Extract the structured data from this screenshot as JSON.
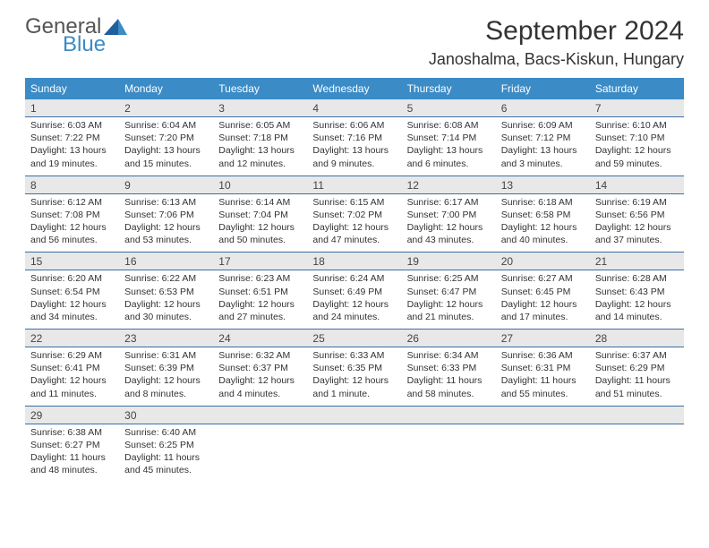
{
  "logo": {
    "general": "General",
    "blue": "Blue"
  },
  "title": {
    "month": "September 2024",
    "location": "Janoshalma, Bacs-Kiskun, Hungary"
  },
  "colors": {
    "header_bg": "#3b8bc6",
    "header_text": "#ffffff",
    "daynum_bg": "#e8e8e8",
    "border": "#3b6ea5",
    "text": "#333333",
    "logo_gray": "#555555",
    "logo_blue": "#3b8bc6"
  },
  "day_names": [
    "Sunday",
    "Monday",
    "Tuesday",
    "Wednesday",
    "Thursday",
    "Friday",
    "Saturday"
  ],
  "weeks": [
    {
      "nums": [
        "1",
        "2",
        "3",
        "4",
        "5",
        "6",
        "7"
      ],
      "cells": [
        {
          "sunrise": "Sunrise: 6:03 AM",
          "sunset": "Sunset: 7:22 PM",
          "day1": "Daylight: 13 hours",
          "day2": "and 19 minutes."
        },
        {
          "sunrise": "Sunrise: 6:04 AM",
          "sunset": "Sunset: 7:20 PM",
          "day1": "Daylight: 13 hours",
          "day2": "and 15 minutes."
        },
        {
          "sunrise": "Sunrise: 6:05 AM",
          "sunset": "Sunset: 7:18 PM",
          "day1": "Daylight: 13 hours",
          "day2": "and 12 minutes."
        },
        {
          "sunrise": "Sunrise: 6:06 AM",
          "sunset": "Sunset: 7:16 PM",
          "day1": "Daylight: 13 hours",
          "day2": "and 9 minutes."
        },
        {
          "sunrise": "Sunrise: 6:08 AM",
          "sunset": "Sunset: 7:14 PM",
          "day1": "Daylight: 13 hours",
          "day2": "and 6 minutes."
        },
        {
          "sunrise": "Sunrise: 6:09 AM",
          "sunset": "Sunset: 7:12 PM",
          "day1": "Daylight: 13 hours",
          "day2": "and 3 minutes."
        },
        {
          "sunrise": "Sunrise: 6:10 AM",
          "sunset": "Sunset: 7:10 PM",
          "day1": "Daylight: 12 hours",
          "day2": "and 59 minutes."
        }
      ]
    },
    {
      "nums": [
        "8",
        "9",
        "10",
        "11",
        "12",
        "13",
        "14"
      ],
      "cells": [
        {
          "sunrise": "Sunrise: 6:12 AM",
          "sunset": "Sunset: 7:08 PM",
          "day1": "Daylight: 12 hours",
          "day2": "and 56 minutes."
        },
        {
          "sunrise": "Sunrise: 6:13 AM",
          "sunset": "Sunset: 7:06 PM",
          "day1": "Daylight: 12 hours",
          "day2": "and 53 minutes."
        },
        {
          "sunrise": "Sunrise: 6:14 AM",
          "sunset": "Sunset: 7:04 PM",
          "day1": "Daylight: 12 hours",
          "day2": "and 50 minutes."
        },
        {
          "sunrise": "Sunrise: 6:15 AM",
          "sunset": "Sunset: 7:02 PM",
          "day1": "Daylight: 12 hours",
          "day2": "and 47 minutes."
        },
        {
          "sunrise": "Sunrise: 6:17 AM",
          "sunset": "Sunset: 7:00 PM",
          "day1": "Daylight: 12 hours",
          "day2": "and 43 minutes."
        },
        {
          "sunrise": "Sunrise: 6:18 AM",
          "sunset": "Sunset: 6:58 PM",
          "day1": "Daylight: 12 hours",
          "day2": "and 40 minutes."
        },
        {
          "sunrise": "Sunrise: 6:19 AM",
          "sunset": "Sunset: 6:56 PM",
          "day1": "Daylight: 12 hours",
          "day2": "and 37 minutes."
        }
      ]
    },
    {
      "nums": [
        "15",
        "16",
        "17",
        "18",
        "19",
        "20",
        "21"
      ],
      "cells": [
        {
          "sunrise": "Sunrise: 6:20 AM",
          "sunset": "Sunset: 6:54 PM",
          "day1": "Daylight: 12 hours",
          "day2": "and 34 minutes."
        },
        {
          "sunrise": "Sunrise: 6:22 AM",
          "sunset": "Sunset: 6:53 PM",
          "day1": "Daylight: 12 hours",
          "day2": "and 30 minutes."
        },
        {
          "sunrise": "Sunrise: 6:23 AM",
          "sunset": "Sunset: 6:51 PM",
          "day1": "Daylight: 12 hours",
          "day2": "and 27 minutes."
        },
        {
          "sunrise": "Sunrise: 6:24 AM",
          "sunset": "Sunset: 6:49 PM",
          "day1": "Daylight: 12 hours",
          "day2": "and 24 minutes."
        },
        {
          "sunrise": "Sunrise: 6:25 AM",
          "sunset": "Sunset: 6:47 PM",
          "day1": "Daylight: 12 hours",
          "day2": "and 21 minutes."
        },
        {
          "sunrise": "Sunrise: 6:27 AM",
          "sunset": "Sunset: 6:45 PM",
          "day1": "Daylight: 12 hours",
          "day2": "and 17 minutes."
        },
        {
          "sunrise": "Sunrise: 6:28 AM",
          "sunset": "Sunset: 6:43 PM",
          "day1": "Daylight: 12 hours",
          "day2": "and 14 minutes."
        }
      ]
    },
    {
      "nums": [
        "22",
        "23",
        "24",
        "25",
        "26",
        "27",
        "28"
      ],
      "cells": [
        {
          "sunrise": "Sunrise: 6:29 AM",
          "sunset": "Sunset: 6:41 PM",
          "day1": "Daylight: 12 hours",
          "day2": "and 11 minutes."
        },
        {
          "sunrise": "Sunrise: 6:31 AM",
          "sunset": "Sunset: 6:39 PM",
          "day1": "Daylight: 12 hours",
          "day2": "and 8 minutes."
        },
        {
          "sunrise": "Sunrise: 6:32 AM",
          "sunset": "Sunset: 6:37 PM",
          "day1": "Daylight: 12 hours",
          "day2": "and 4 minutes."
        },
        {
          "sunrise": "Sunrise: 6:33 AM",
          "sunset": "Sunset: 6:35 PM",
          "day1": "Daylight: 12 hours",
          "day2": "and 1 minute."
        },
        {
          "sunrise": "Sunrise: 6:34 AM",
          "sunset": "Sunset: 6:33 PM",
          "day1": "Daylight: 11 hours",
          "day2": "and 58 minutes."
        },
        {
          "sunrise": "Sunrise: 6:36 AM",
          "sunset": "Sunset: 6:31 PM",
          "day1": "Daylight: 11 hours",
          "day2": "and 55 minutes."
        },
        {
          "sunrise": "Sunrise: 6:37 AM",
          "sunset": "Sunset: 6:29 PM",
          "day1": "Daylight: 11 hours",
          "day2": "and 51 minutes."
        }
      ]
    },
    {
      "nums": [
        "29",
        "30",
        "",
        "",
        "",
        "",
        ""
      ],
      "cells": [
        {
          "sunrise": "Sunrise: 6:38 AM",
          "sunset": "Sunset: 6:27 PM",
          "day1": "Daylight: 11 hours",
          "day2": "and 48 minutes."
        },
        {
          "sunrise": "Sunrise: 6:40 AM",
          "sunset": "Sunset: 6:25 PM",
          "day1": "Daylight: 11 hours",
          "day2": "and 45 minutes."
        },
        null,
        null,
        null,
        null,
        null
      ]
    }
  ]
}
